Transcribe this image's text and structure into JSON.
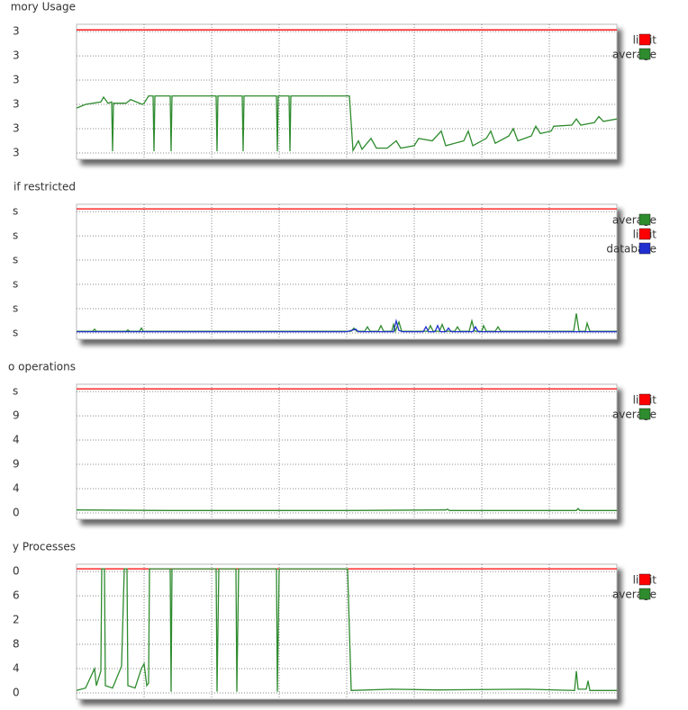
{
  "chart_data": [
    {
      "type": "line",
      "title": "mory Usage",
      "ylim": [
        -0.26,
        5.3
      ],
      "yticks": [
        {
          "value": 0,
          "label": "3"
        },
        {
          "value": 1,
          "label": "3"
        },
        {
          "value": 2,
          "label": "3"
        },
        {
          "value": 3,
          "label": "3"
        },
        {
          "value": 4,
          "label": "3"
        },
        {
          "value": 5,
          "label": "3"
        }
      ],
      "xlim": [
        0,
        600
      ],
      "xticks": [
        75,
        150,
        225,
        300,
        375,
        450,
        525
      ],
      "grid": true,
      "legend": "upper right",
      "series": [
        {
          "name": "limit",
          "color": "#ff0000",
          "x": [
            0,
            600
          ],
          "values": [
            5.07,
            5.07
          ]
        },
        {
          "name": "average",
          "color": "#2e8b2e",
          "x": [
            0,
            10,
            27,
            30,
            35,
            39,
            40,
            41,
            55,
            60,
            73,
            75,
            80,
            85,
            86,
            87,
            104,
            105,
            106,
            155,
            156,
            157,
            184,
            185,
            186,
            222,
            223,
            224,
            236,
            237,
            238,
            303,
            307,
            313,
            317,
            327,
            333,
            345,
            355,
            360,
            375,
            380,
            395,
            405,
            410,
            430,
            435,
            440,
            455,
            460,
            465,
            480,
            485,
            490,
            505,
            510,
            515,
            527,
            530,
            550,
            555,
            560,
            575,
            580,
            585,
            600
          ],
          "values": [
            1.85,
            2.0,
            2.1,
            2.3,
            2.05,
            2.1,
            0.07,
            2.05,
            2.05,
            2.2,
            2.0,
            2.05,
            2.35,
            2.35,
            0.07,
            2.35,
            2.35,
            0.07,
            2.35,
            2.35,
            0.07,
            2.35,
            2.35,
            0.07,
            2.35,
            2.35,
            0.07,
            2.35,
            2.35,
            0.07,
            2.35,
            2.35,
            0.1,
            0.5,
            0.15,
            0.6,
            0.2,
            0.2,
            0.5,
            0.2,
            0.3,
            0.6,
            0.5,
            0.9,
            0.3,
            0.5,
            0.9,
            0.3,
            0.6,
            0.9,
            0.4,
            0.7,
            1.0,
            0.5,
            0.7,
            1.1,
            0.8,
            0.9,
            1.1,
            1.15,
            1.4,
            1.15,
            1.25,
            1.5,
            1.3,
            1.4
          ]
        }
      ]
    },
    {
      "type": "line",
      "title": "if restricted",
      "ylim": [
        -0.26,
        5.3
      ],
      "yticks": [
        {
          "value": 0,
          "label": "s"
        },
        {
          "value": 1,
          "label": "s"
        },
        {
          "value": 2,
          "label": "s"
        },
        {
          "value": 3,
          "label": "s"
        },
        {
          "value": 4,
          "label": "s"
        },
        {
          "value": 5,
          "label": "s"
        }
      ],
      "xlim": [
        0,
        600
      ],
      "xticks": [
        75,
        150,
        225,
        300,
        375,
        450,
        525
      ],
      "grid": true,
      "legend": "upper right",
      "series": [
        {
          "name": "average",
          "color": "#2e8b2e",
          "x": [
            0,
            18,
            20,
            22,
            55,
            57,
            59,
            70,
            72,
            74,
            305,
            308,
            311,
            320,
            323,
            326,
            335,
            338,
            341,
            350,
            352,
            354,
            358,
            361,
            390,
            393,
            396,
            403,
            406,
            409,
            420,
            423,
            426,
            436,
            439,
            442,
            450,
            452,
            455,
            465,
            468,
            471,
            552,
            555,
            558,
            565,
            567,
            570,
            600
          ],
          "values": [
            0.07,
            0.07,
            0.15,
            0.07,
            0.07,
            0.12,
            0.07,
            0.07,
            0.2,
            0.07,
            0.07,
            0.2,
            0.07,
            0.07,
            0.25,
            0.07,
            0.07,
            0.3,
            0.07,
            0.07,
            0.35,
            0.07,
            0.45,
            0.07,
            0.07,
            0.3,
            0.07,
            0.07,
            0.35,
            0.07,
            0.07,
            0.25,
            0.07,
            0.07,
            0.5,
            0.07,
            0.07,
            0.3,
            0.07,
            0.07,
            0.25,
            0.07,
            0.07,
            0.8,
            0.07,
            0.07,
            0.4,
            0.07,
            0.07
          ]
        },
        {
          "name": "limit",
          "color": "#ff0000",
          "x": [
            0,
            600
          ],
          "values": [
            5.11,
            5.11
          ]
        },
        {
          "name": "database",
          "color": "#1f2fd0",
          "x": [
            0,
            300,
            310,
            313,
            352,
            355,
            358,
            362,
            385,
            388,
            391,
            398,
            401,
            404,
            410,
            413,
            416,
            440,
            443,
            446,
            600
          ],
          "values": [
            0.05,
            0.05,
            0.15,
            0.05,
            0.05,
            0.5,
            0.1,
            0.05,
            0.05,
            0.25,
            0.05,
            0.05,
            0.3,
            0.05,
            0.05,
            0.2,
            0.05,
            0.05,
            0.25,
            0.05,
            0.05
          ]
        }
      ]
    },
    {
      "type": "line",
      "title": "o operations",
      "ylim": [
        -0.26,
        5.3
      ],
      "yticks": [
        {
          "value": 0,
          "label": "0"
        },
        {
          "value": 1,
          "label": "4"
        },
        {
          "value": 2,
          "label": "9"
        },
        {
          "value": 3,
          "label": "4"
        },
        {
          "value": 4,
          "label": "9"
        },
        {
          "value": 5,
          "label": "s"
        }
      ],
      "xlim": [
        0,
        600
      ],
      "xticks": [
        75,
        150,
        225,
        300,
        375,
        450,
        525
      ],
      "grid": true,
      "legend": "upper right",
      "series": [
        {
          "name": "limit",
          "color": "#ff0000",
          "x": [
            0,
            600
          ],
          "values": [
            5.11,
            5.11
          ]
        },
        {
          "name": "average",
          "color": "#2e8b2e",
          "x": [
            0,
            100,
            300,
            410,
            412,
            414,
            555,
            557,
            559,
            600
          ],
          "values": [
            0.12,
            0.1,
            0.1,
            0.12,
            0.15,
            0.1,
            0.1,
            0.18,
            0.1,
            0.1
          ]
        }
      ]
    },
    {
      "type": "line",
      "title": "y Processes",
      "ylim": [
        -0.26,
        5.3
      ],
      "yticks": [
        {
          "value": 0,
          "label": "0"
        },
        {
          "value": 1,
          "label": "4"
        },
        {
          "value": 2,
          "label": "8"
        },
        {
          "value": 3,
          "label": "2"
        },
        {
          "value": 4,
          "label": "6"
        },
        {
          "value": 5,
          "label": "0"
        }
      ],
      "xlim": [
        0,
        600
      ],
      "xticks": [
        75,
        150,
        225,
        300,
        375,
        450,
        525
      ],
      "grid": true,
      "legend": "upper right",
      "series": [
        {
          "name": "limit",
          "color": "#ff0000",
          "x": [
            0,
            600
          ],
          "values": [
            5.11,
            5.11
          ]
        },
        {
          "name": "average",
          "color": "#2e8b2e",
          "x": [
            0,
            10,
            20,
            22,
            27,
            28,
            31,
            32,
            40,
            50,
            53,
            56,
            57,
            65,
            72,
            75,
            78,
            80,
            81,
            104,
            105,
            106,
            155,
            156,
            158,
            177,
            178,
            180,
            222,
            223,
            225,
            301,
            305,
            350,
            400,
            500,
            553,
            555,
            557,
            566,
            568,
            570,
            600
          ],
          "values": [
            0.1,
            0.2,
            1.0,
            0.3,
            0.9,
            5.11,
            5.11,
            0.3,
            0.2,
            1.1,
            5.11,
            5.11,
            0.3,
            0.2,
            1.0,
            1.2,
            0.3,
            0.4,
            5.11,
            5.11,
            0.05,
            5.11,
            5.11,
            0.05,
            5.11,
            5.11,
            0.05,
            5.11,
            5.11,
            0.05,
            5.11,
            5.11,
            0.1,
            0.15,
            0.12,
            0.15,
            0.1,
            0.9,
            0.15,
            0.15,
            0.5,
            0.1,
            0.1
          ]
        }
      ]
    }
  ]
}
